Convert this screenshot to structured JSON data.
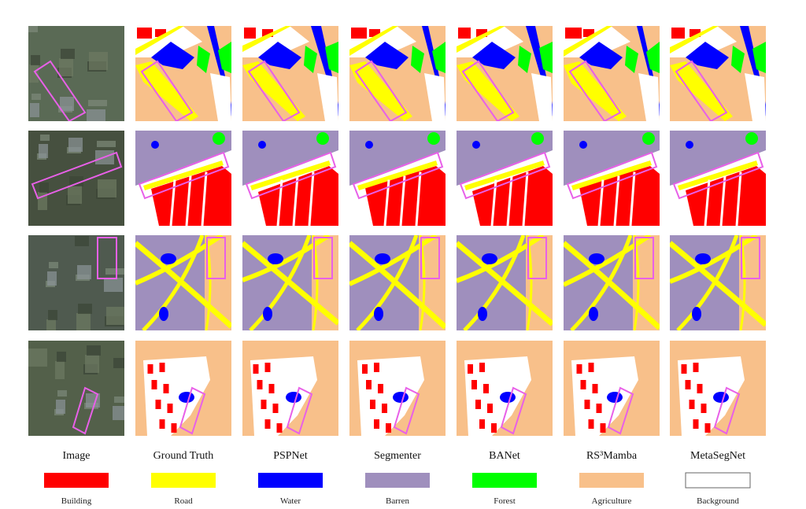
{
  "columns": [
    "Image",
    "Ground Truth",
    "PSPNet",
    "Segmenter",
    "BANet",
    "RS³Mamba",
    "MetaSegNet"
  ],
  "legend": [
    {
      "label": "Building",
      "color": "#ff0000"
    },
    {
      "label": "Road",
      "color": "#ffff00"
    },
    {
      "label": "Water",
      "color": "#0000ff"
    },
    {
      "label": "Barren",
      "color": "#9f8fbd"
    },
    {
      "label": "Forest",
      "color": "#00ff00"
    },
    {
      "label": "Agriculture",
      "color": "#f8c08a"
    },
    {
      "label": "Background",
      "color": "#ffffff"
    }
  ]
}
